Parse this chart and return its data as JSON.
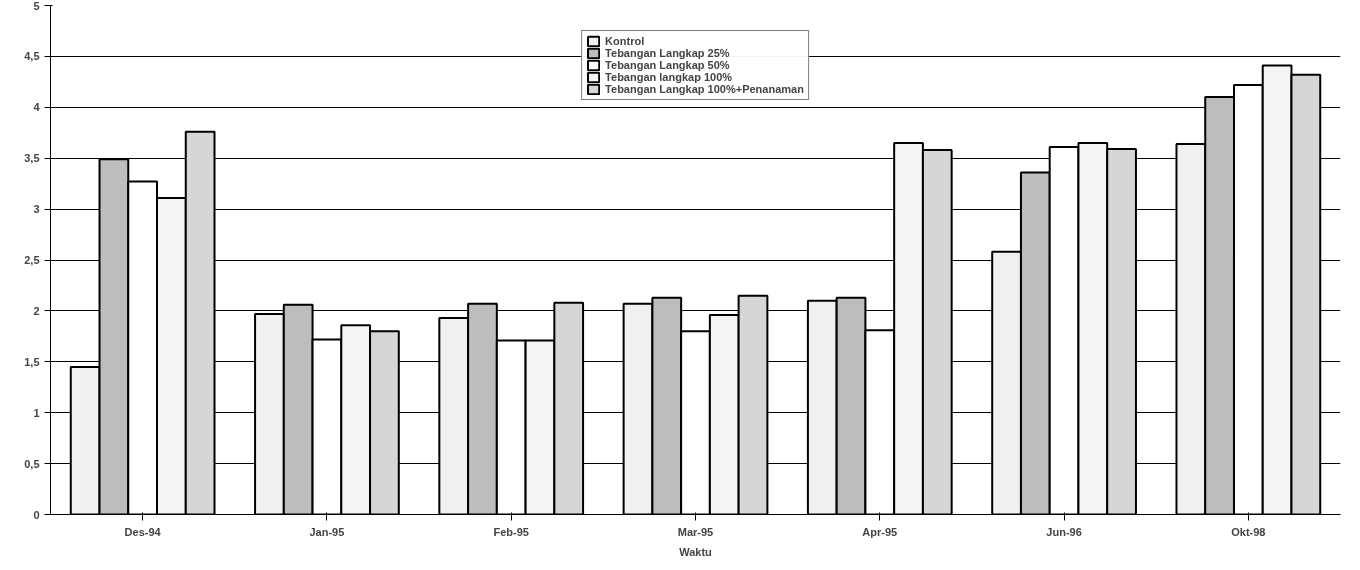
{
  "chart_data": {
    "type": "bar",
    "xlabel": "Waktu",
    "categories": [
      "Des-94",
      "Jan-95",
      "Feb-95",
      "Mar-95",
      "Apr-95",
      "Jun-96",
      "Okt-98"
    ],
    "series": [
      {
        "name": "Kontrol",
        "color": "#f0f0f0",
        "values": [
          1.45,
          1.97,
          1.93,
          2.07,
          2.1,
          2.58,
          3.64
        ]
      },
      {
        "name": "Tebangan Langkap 25%",
        "color": "#bdbdbd",
        "values": [
          3.49,
          2.06,
          2.07,
          2.13,
          2.13,
          3.36,
          4.1
        ]
      },
      {
        "name": "Tebangan Langkap 50%",
        "color": "#ffffff",
        "values": [
          3.27,
          1.72,
          1.71,
          1.8,
          1.81,
          3.61,
          4.22
        ]
      },
      {
        "name": "Tebangan langkap 100%",
        "color": "#f5f5f5",
        "values": [
          3.11,
          1.86,
          1.71,
          1.96,
          3.65,
          3.65,
          4.41
        ]
      },
      {
        "name": "Tebangan Langkap 100%+Penanaman",
        "color": "#d6d6d6",
        "values": [
          3.76,
          1.8,
          2.08,
          2.15,
          3.58,
          3.59,
          4.32
        ]
      }
    ],
    "ylim": [
      0,
      5
    ],
    "yticks": [
      0,
      {
        "value": 0.5,
        "label": "0,5"
      },
      1,
      {
        "value": 1.5,
        "label": "1,5"
      },
      2,
      {
        "value": 2.5,
        "label": "2,5"
      },
      3,
      {
        "value": 3.5,
        "label": "3,5"
      },
      4,
      {
        "value": 4.5,
        "label": "4,5"
      },
      5
    ],
    "grid": "y",
    "legend": "top"
  }
}
